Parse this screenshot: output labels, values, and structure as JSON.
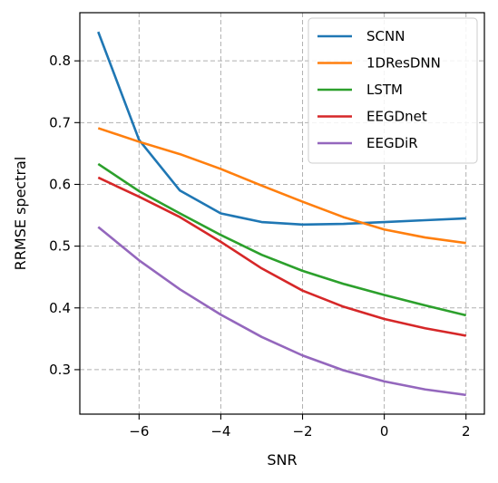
{
  "chart_data": {
    "type": "line",
    "title": "",
    "xlabel": "SNR",
    "ylabel": "RRMSE spectral",
    "x": [
      -7,
      -6,
      -5,
      -4,
      -3,
      -2,
      -1,
      0,
      1,
      2
    ],
    "xlim": [
      -7.45,
      2.45
    ],
    "ylim": [
      0.228,
      0.878
    ],
    "xticks": [
      -6,
      -4,
      -2,
      0,
      2
    ],
    "xtick_labels": [
      "−6",
      "−4",
      "−2",
      "0",
      "2"
    ],
    "yticks": [
      0.3,
      0.4,
      0.5,
      0.6,
      0.7,
      0.8
    ],
    "ytick_labels": [
      "0.3",
      "0.4",
      "0.5",
      "0.6",
      "0.7",
      "0.8"
    ],
    "grid": true,
    "legend_position": "top-right",
    "series": [
      {
        "name": "SCNN",
        "color": "#1f77b4",
        "values": [
          0.847,
          0.672,
          0.59,
          0.553,
          0.539,
          0.535,
          0.536,
          0.539,
          0.542,
          0.545
        ]
      },
      {
        "name": "1DResDNN",
        "color": "#ff7f0e",
        "values": [
          0.691,
          0.669,
          0.649,
          0.625,
          0.598,
          0.572,
          0.547,
          0.527,
          0.514,
          0.505
        ]
      },
      {
        "name": "LSTM",
        "color": "#2ca02c",
        "values": [
          0.633,
          0.589,
          0.553,
          0.518,
          0.486,
          0.46,
          0.439,
          0.421,
          0.404,
          0.388
        ]
      },
      {
        "name": "EEGDnet",
        "color": "#d62728",
        "values": [
          0.611,
          0.58,
          0.547,
          0.507,
          0.464,
          0.428,
          0.402,
          0.382,
          0.367,
          0.355
        ]
      },
      {
        "name": "EEGDiR",
        "color": "#9467bd",
        "values": [
          0.531,
          0.477,
          0.43,
          0.389,
          0.353,
          0.323,
          0.299,
          0.281,
          0.268,
          0.259
        ]
      }
    ]
  }
}
